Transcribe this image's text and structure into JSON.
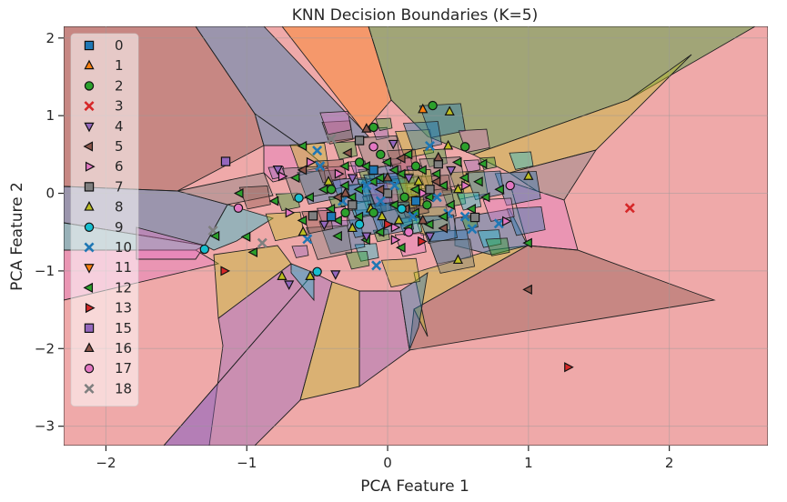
{
  "chart_data": {
    "type": "scatter",
    "title": "KNN Decision Boundaries (K=5)",
    "xlabel": "PCA Feature 1",
    "ylabel": "PCA Feature 2",
    "xlim": [
      -2.3,
      2.7
    ],
    "ylim": [
      -3.25,
      2.15
    ],
    "xticks": [
      -2,
      -1,
      0,
      1,
      2
    ],
    "xtick_labels": [
      "−2",
      "−1",
      "0",
      "1",
      "2"
    ],
    "yticks": [
      -3,
      -2,
      -1,
      0,
      1,
      2
    ],
    "ytick_labels": [
      "−3",
      "−2",
      "−1",
      "0",
      "1",
      "2"
    ],
    "grid": true,
    "legend_position": "upper-left",
    "classes": [
      {
        "name": "0",
        "marker": "square",
        "color": "#1f77b4"
      },
      {
        "name": "1",
        "marker": "triangle-up",
        "color": "#ff7f0e"
      },
      {
        "name": "2",
        "marker": "circle",
        "color": "#2ca02c"
      },
      {
        "name": "3",
        "marker": "x",
        "color": "#d62728"
      },
      {
        "name": "4",
        "marker": "triangle-down",
        "color": "#9467bd"
      },
      {
        "name": "5",
        "marker": "triangle-left",
        "color": "#8c564b"
      },
      {
        "name": "6",
        "marker": "triangle-right",
        "color": "#e377c2"
      },
      {
        "name": "7",
        "marker": "square",
        "color": "#7f7f7f"
      },
      {
        "name": "8",
        "marker": "triangle-up",
        "color": "#bcbd22"
      },
      {
        "name": "9",
        "marker": "circle",
        "color": "#17becf"
      },
      {
        "name": "10",
        "marker": "x",
        "color": "#1f77b4"
      },
      {
        "name": "11",
        "marker": "triangle-down",
        "color": "#ff7f0e"
      },
      {
        "name": "12",
        "marker": "triangle-left",
        "color": "#2ca02c"
      },
      {
        "name": "13",
        "marker": "triangle-right",
        "color": "#d62728"
      },
      {
        "name": "15",
        "marker": "square",
        "color": "#9467bd"
      },
      {
        "name": "16",
        "marker": "triangle-up",
        "color": "#8c564b"
      },
      {
        "name": "17",
        "marker": "circle",
        "color": "#e377c2"
      },
      {
        "name": "18",
        "marker": "x",
        "color": "#7f7f7f"
      }
    ],
    "points": [
      {
        "x": 0.25,
        "y": 1.08,
        "c": "1"
      },
      {
        "x": 0.32,
        "y": 1.13,
        "c": "2"
      },
      {
        "x": -0.1,
        "y": 0.85,
        "c": "2"
      },
      {
        "x": 0.55,
        "y": 0.6,
        "c": "2"
      },
      {
        "x": 1.72,
        "y": -0.19,
        "c": "3"
      },
      {
        "x": 1.0,
        "y": -1.24,
        "c": "5"
      },
      {
        "x": 1.28,
        "y": -2.24,
        "c": "13"
      },
      {
        "x": -1.16,
        "y": -1.0,
        "c": "13"
      },
      {
        "x": -1.15,
        "y": 0.41,
        "c": "15"
      },
      {
        "x": -1.3,
        "y": -0.72,
        "c": "9"
      },
      {
        "x": -0.5,
        "y": -1.01,
        "c": "9"
      },
      {
        "x": -0.63,
        "y": -0.06,
        "c": "9"
      },
      {
        "x": -1.24,
        "y": -0.48,
        "c": "18"
      },
      {
        "x": -0.89,
        "y": -0.64,
        "c": "18"
      },
      {
        "x": -0.4,
        "y": 0.7,
        "c": "18"
      },
      {
        "x": -1.06,
        "y": -0.19,
        "c": "17"
      },
      {
        "x": 0.87,
        "y": 0.1,
        "c": "17"
      },
      {
        "x": 0.62,
        "y": -0.31,
        "c": "7"
      },
      {
        "x": -0.53,
        "y": -0.29,
        "c": "7"
      },
      {
        "x": 0.0,
        "y": 0.0,
        "c": "7"
      },
      {
        "x": -0.2,
        "y": 0.68,
        "c": "7"
      },
      {
        "x": 0.36,
        "y": 0.38,
        "c": "7"
      },
      {
        "x": -0.48,
        "y": 0.35,
        "c": "10"
      },
      {
        "x": -0.08,
        "y": -0.93,
        "c": "10"
      },
      {
        "x": 0.6,
        "y": -0.46,
        "c": "10"
      },
      {
        "x": 0.79,
        "y": -0.39,
        "c": "10"
      },
      {
        "x": 0.3,
        "y": 0.61,
        "c": "10"
      },
      {
        "x": -0.57,
        "y": -0.59,
        "c": "10"
      },
      {
        "x": 0.43,
        "y": -0.26,
        "c": "10"
      },
      {
        "x": -1.0,
        "y": -0.56,
        "c": "12"
      },
      {
        "x": 1.0,
        "y": -0.64,
        "c": "12"
      },
      {
        "x": 0.68,
        "y": 0.38,
        "c": "12"
      },
      {
        "x": -0.6,
        "y": 0.61,
        "c": "12"
      },
      {
        "x": -0.95,
        "y": -0.76,
        "c": "12"
      },
      {
        "x": -0.78,
        "y": 0.31,
        "c": "4"
      },
      {
        "x": 0.04,
        "y": 0.64,
        "c": "4"
      },
      {
        "x": -0.7,
        "y": -1.17,
        "c": "4"
      },
      {
        "x": -0.37,
        "y": -1.04,
        "c": "4"
      },
      {
        "x": -0.75,
        "y": 0.22,
        "c": "6"
      },
      {
        "x": 0.84,
        "y": -0.36,
        "c": "6"
      },
      {
        "x": 0.05,
        "y": -0.44,
        "c": "6"
      },
      {
        "x": 0.44,
        "y": 1.05,
        "c": "8"
      },
      {
        "x": 0.43,
        "y": 0.61,
        "c": "8"
      },
      {
        "x": 0.5,
        "y": -0.86,
        "c": "8"
      },
      {
        "x": -0.55,
        "y": -1.07,
        "c": "8"
      },
      {
        "x": -0.75,
        "y": -1.07,
        "c": "8"
      },
      {
        "x": 1.0,
        "y": 0.22,
        "c": "8"
      },
      {
        "x": -0.04,
        "y": -0.3,
        "c": "8"
      },
      {
        "x": -0.15,
        "y": 0.83,
        "c": "16"
      },
      {
        "x": 0.36,
        "y": 0.46,
        "c": "16"
      },
      {
        "x": -0.28,
        "y": 0.52,
        "c": "5"
      },
      {
        "x": 0.13,
        "y": -0.2,
        "c": "5"
      },
      {
        "x": 0.24,
        "y": -0.62,
        "c": "13"
      },
      {
        "x": -0.15,
        "y": 0.35,
        "c": "12"
      },
      {
        "x": 0.1,
        "y": 0.25,
        "c": "12"
      },
      {
        "x": 0.2,
        "y": 0.05,
        "c": "12"
      },
      {
        "x": -0.3,
        "y": 0.1,
        "c": "12"
      },
      {
        "x": 0.4,
        "y": 0.1,
        "c": "12"
      },
      {
        "x": 0.55,
        "y": 0.2,
        "c": "12"
      },
      {
        "x": -0.05,
        "y": -0.5,
        "c": "12"
      },
      {
        "x": 0.3,
        "y": -0.4,
        "c": "12"
      },
      {
        "x": -0.2,
        "y": -0.3,
        "c": "12"
      },
      {
        "x": 0.7,
        "y": -0.05,
        "c": "12"
      },
      {
        "x": -0.45,
        "y": 0.05,
        "c": "12"
      },
      {
        "x": 0.15,
        "y": 0.5,
        "c": "12"
      },
      {
        "x": -0.1,
        "y": 0.15,
        "c": "12"
      },
      {
        "x": 0.05,
        "y": -0.15,
        "c": "12"
      },
      {
        "x": 0.25,
        "y": 0.3,
        "c": "12"
      },
      {
        "x": -0.35,
        "y": -0.55,
        "c": "12"
      },
      {
        "x": 0.45,
        "y": -0.15,
        "c": "12"
      },
      {
        "x": -0.6,
        "y": -0.35,
        "c": "12"
      },
      {
        "x": 0.8,
        "y": 0.05,
        "c": "12"
      },
      {
        "x": 0.1,
        "y": -0.7,
        "c": "12"
      },
      {
        "x": -0.25,
        "y": -0.05,
        "c": "12"
      },
      {
        "x": 0.6,
        "y": -0.2,
        "c": "12"
      },
      {
        "x": -0.8,
        "y": -0.1,
        "c": "12"
      },
      {
        "x": 0.35,
        "y": 0.25,
        "c": "12"
      },
      {
        "x": -0.4,
        "y": -0.2,
        "c": "12"
      },
      {
        "x": 0.0,
        "y": 0.4,
        "c": "12"
      },
      {
        "x": -0.15,
        "y": -0.6,
        "c": "12"
      },
      {
        "x": 0.2,
        "y": -0.25,
        "c": "12"
      },
      {
        "x": -0.65,
        "y": 0.2,
        "c": "12"
      },
      {
        "x": 0.5,
        "y": 0.4,
        "c": "12"
      },
      {
        "x": -0.05,
        "y": 0.2,
        "c": "12"
      },
      {
        "x": 0.3,
        "y": -0.05,
        "c": "12"
      },
      {
        "x": -0.3,
        "y": 0.35,
        "c": "12"
      },
      {
        "x": 0.15,
        "y": -0.45,
        "c": "12"
      },
      {
        "x": -0.55,
        "y": -0.05,
        "c": "12"
      },
      {
        "x": 0.65,
        "y": 0.15,
        "c": "12"
      },
      {
        "x": -0.2,
        "y": 0.05,
        "c": "12"
      },
      {
        "x": 0.05,
        "y": 0.3,
        "c": "12"
      },
      {
        "x": -0.35,
        "y": -0.35,
        "c": "12"
      },
      {
        "x": 0.4,
        "y": -0.3,
        "c": "12"
      },
      {
        "x": -1.05,
        "y": 0.0,
        "c": "12"
      },
      {
        "x": -1.22,
        "y": -0.55,
        "c": "12"
      },
      {
        "x": -0.12,
        "y": -0.2,
        "c": "8"
      },
      {
        "x": 0.22,
        "y": 0.15,
        "c": "8"
      },
      {
        "x": -0.42,
        "y": 0.15,
        "c": "8"
      },
      {
        "x": 0.08,
        "y": -0.35,
        "c": "8"
      },
      {
        "x": -0.25,
        "y": -0.45,
        "c": "8"
      },
      {
        "x": 0.5,
        "y": 0.05,
        "c": "8"
      },
      {
        "x": -0.6,
        "y": -0.5,
        "c": "8"
      },
      {
        "x": 0.18,
        "y": -0.3,
        "c": "10"
      },
      {
        "x": -0.15,
        "y": 0.1,
        "c": "10"
      },
      {
        "x": 0.35,
        "y": -0.05,
        "c": "10"
      },
      {
        "x": -0.32,
        "y": -0.1,
        "c": "10"
      },
      {
        "x": 0.05,
        "y": 0.1,
        "c": "10"
      },
      {
        "x": 0.55,
        "y": -0.3,
        "c": "10"
      },
      {
        "x": -0.05,
        "y": -0.1,
        "c": "10"
      },
      {
        "x": -0.5,
        "y": 0.55,
        "c": "10"
      },
      {
        "x": -0.2,
        "y": 0.4,
        "c": "2"
      },
      {
        "x": 0.2,
        "y": 0.35,
        "c": "2"
      },
      {
        "x": -0.4,
        "y": 0.05,
        "c": "2"
      },
      {
        "x": 0.12,
        "y": -0.05,
        "c": "2"
      },
      {
        "x": -0.1,
        "y": -0.25,
        "c": "2"
      },
      {
        "x": -0.3,
        "y": -0.25,
        "c": "2"
      },
      {
        "x": 0.28,
        "y": -0.15,
        "c": "2"
      },
      {
        "x": -0.05,
        "y": 0.5,
        "c": "2"
      },
      {
        "x": 0.15,
        "y": 0.2,
        "c": "4"
      },
      {
        "x": -0.25,
        "y": 0.2,
        "c": "4"
      },
      {
        "x": 0.3,
        "y": -0.55,
        "c": "4"
      },
      {
        "x": -0.45,
        "y": -0.4,
        "c": "4"
      },
      {
        "x": 0.45,
        "y": 0.3,
        "c": "4"
      },
      {
        "x": -0.15,
        "y": -0.55,
        "c": "4"
      },
      {
        "x": 0.05,
        "y": -0.6,
        "c": "6"
      },
      {
        "x": -0.35,
        "y": 0.25,
        "c": "6"
      },
      {
        "x": 0.25,
        "y": 0.0,
        "c": "6"
      },
      {
        "x": -0.55,
        "y": 0.4,
        "c": "6"
      },
      {
        "x": 0.55,
        "y": 0.1,
        "c": "6"
      },
      {
        "x": -0.7,
        "y": -0.25,
        "c": "6"
      },
      {
        "x": -0.05,
        "y": 0.05,
        "c": "5"
      },
      {
        "x": 0.35,
        "y": 0.15,
        "c": "5"
      },
      {
        "x": -0.35,
        "y": -0.05,
        "c": "5"
      },
      {
        "x": 0.1,
        "y": 0.45,
        "c": "5"
      },
      {
        "x": -0.6,
        "y": 0.3,
        "c": "5"
      },
      {
        "x": 0.4,
        "y": -0.45,
        "c": "5"
      },
      {
        "x": 0.0,
        "y": -0.4,
        "c": "13"
      },
      {
        "x": -0.25,
        "y": -0.15,
        "c": "7"
      },
      {
        "x": 0.3,
        "y": 0.05,
        "c": "7"
      },
      {
        "x": -0.1,
        "y": 0.3,
        "c": "0"
      },
      {
        "x": 0.2,
        "y": -0.1,
        "c": "0"
      },
      {
        "x": -0.4,
        "y": -0.3,
        "c": "0"
      },
      {
        "x": 0.1,
        "y": -0.2,
        "c": "9"
      },
      {
        "x": -0.2,
        "y": -0.4,
        "c": "9"
      },
      {
        "x": 0.0,
        "y": 0.2,
        "c": "16"
      },
      {
        "x": -0.3,
        "y": 0.0,
        "c": "16"
      },
      {
        "x": 0.25,
        "y": -0.35,
        "c": "16"
      },
      {
        "x": -0.1,
        "y": 0.6,
        "c": "17"
      },
      {
        "x": 0.15,
        "y": -0.5,
        "c": "17"
      }
    ]
  }
}
